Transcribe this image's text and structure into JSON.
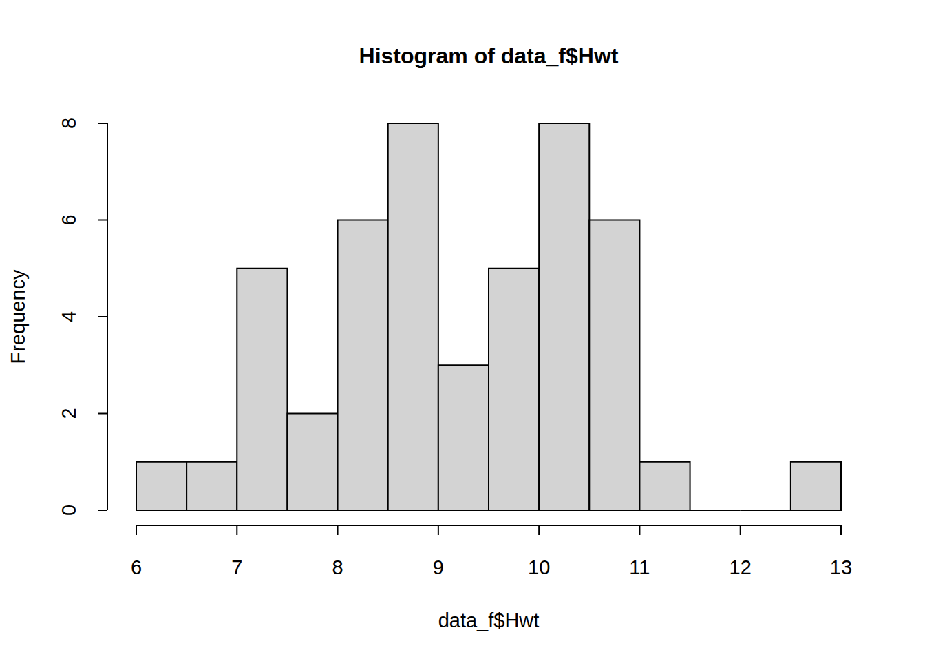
{
  "chart_data": {
    "type": "histogram",
    "title": "Histogram of data_f$Hwt",
    "x_label": "data_f$Hwt",
    "y_label": "Frequency",
    "bins": [
      6,
      6.5,
      7,
      7.5,
      8,
      8.5,
      9,
      9.5,
      10,
      10.5,
      11,
      11.5,
      12,
      12.5,
      13
    ],
    "values": [
      1,
      1,
      5,
      2,
      6,
      8,
      3,
      5,
      8,
      6,
      1,
      0,
      0,
      1
    ],
    "color": "#d3d3d3",
    "xlim": [
      6,
      13
    ],
    "ylim": [
      0,
      8
    ],
    "xticks": [
      6,
      7,
      8,
      9,
      10,
      11,
      12,
      13
    ],
    "yticks": [
      0,
      2,
      4,
      6,
      8
    ],
    "grid": false
  }
}
